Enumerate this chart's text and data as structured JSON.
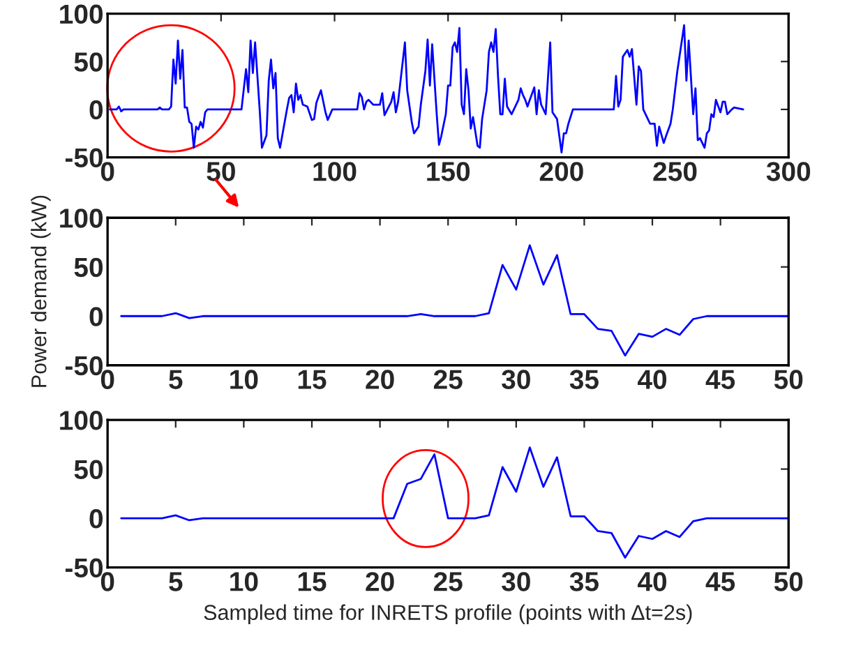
{
  "chart_data": [
    {
      "type": "line",
      "x": [
        1,
        4,
        5,
        6,
        7,
        22,
        23,
        24,
        27,
        28,
        29,
        30,
        31,
        32,
        33,
        34,
        35,
        36,
        37,
        38,
        39,
        40,
        41,
        42,
        43,
        44,
        59,
        61,
        62,
        63,
        64,
        65,
        67,
        68,
        70,
        71,
        72,
        73,
        74,
        75,
        76,
        79,
        80,
        81,
        82,
        83,
        84,
        85,
        86,
        88,
        90,
        91,
        92,
        94,
        96,
        97,
        99,
        110,
        111,
        112,
        113,
        114,
        115,
        117,
        120,
        121,
        122,
        125,
        126,
        127,
        128,
        131,
        132,
        134,
        135,
        137,
        138,
        140,
        141,
        142,
        143,
        145,
        146,
        147,
        149,
        150,
        151,
        152,
        153,
        154,
        155,
        156,
        157,
        158,
        159,
        160,
        161,
        163,
        164,
        165,
        167,
        168,
        169,
        170,
        171,
        172,
        173,
        174,
        175,
        176,
        178,
        179,
        181,
        182,
        183,
        184,
        185,
        186,
        188,
        189,
        190,
        191,
        193,
        195,
        196,
        198,
        200,
        201,
        202,
        203,
        205,
        223,
        224,
        225,
        226,
        227,
        229,
        230,
        231,
        233,
        234,
        235,
        236,
        238,
        239,
        241,
        242,
        243,
        245,
        246,
        248,
        249,
        251,
        254,
        255,
        256,
        258,
        259,
        260,
        261,
        263,
        264,
        265,
        266,
        267,
        268,
        270,
        271,
        272,
        273,
        275,
        276,
        280
      ],
      "values": [
        0,
        0,
        3,
        -2,
        0,
        0,
        2,
        0,
        0,
        3,
        52,
        27,
        72,
        32,
        62,
        2,
        2,
        -13,
        -15,
        -40,
        -18,
        -21,
        -13,
        -19,
        -3,
        0,
        0,
        42,
        18,
        72,
        38,
        70,
        0,
        -40,
        -27,
        30,
        52,
        22,
        38,
        -30,
        -40,
        0,
        12,
        15,
        -3,
        27,
        10,
        15,
        5,
        3,
        -11,
        -10,
        7,
        20,
        -3,
        -11,
        0,
        0,
        17,
        13,
        0,
        8,
        10,
        5,
        5,
        17,
        -6,
        8,
        18,
        -3,
        8,
        70,
        20,
        -13,
        -25,
        -18,
        5,
        40,
        73,
        25,
        68,
        -5,
        -37,
        -28,
        -5,
        25,
        25,
        65,
        70,
        60,
        85,
        5,
        -5,
        42,
        20,
        -20,
        -8,
        -38,
        -40,
        -10,
        20,
        60,
        70,
        60,
        84,
        35,
        -5,
        -5,
        32,
        3,
        -5,
        0,
        10,
        22,
        15,
        10,
        3,
        10,
        23,
        -5,
        20,
        5,
        -5,
        70,
        -3,
        -10,
        -45,
        -25,
        -25,
        -15,
        0,
        0,
        35,
        3,
        10,
        55,
        62,
        55,
        63,
        5,
        45,
        40,
        0,
        -10,
        -15,
        -15,
        -38,
        -18,
        -35,
        -28,
        -15,
        0,
        40,
        88,
        30,
        72,
        -5,
        22,
        -32,
        -30,
        -40,
        -25,
        -22,
        -5,
        -8,
        10,
        -3,
        8,
        8,
        -5,
        0,
        2,
        0
      ],
      "color": "#0000ff",
      "xlim": [
        0,
        300
      ],
      "xticks": [
        0,
        50,
        100,
        150,
        200,
        250,
        300
      ],
      "ylim": [
        -50,
        100
      ],
      "yticks": [
        -50,
        0,
        50,
        100
      ],
      "grid": false
    },
    {
      "type": "line",
      "x": [
        1,
        2,
        3,
        4,
        5,
        6,
        7,
        8,
        9,
        10,
        11,
        12,
        13,
        14,
        15,
        16,
        17,
        18,
        19,
        20,
        21,
        22,
        23,
        24,
        25,
        26,
        27,
        28,
        29,
        30,
        31,
        32,
        33,
        34,
        35,
        36,
        37,
        38,
        39,
        40,
        41,
        42,
        43,
        44,
        45,
        46,
        47,
        48,
        49,
        50
      ],
      "values": [
        0,
        0,
        0,
        0,
        3,
        -2,
        0,
        0,
        0,
        0,
        0,
        0,
        0,
        0,
        0,
        0,
        0,
        0,
        0,
        0,
        0,
        0,
        2,
        0,
        0,
        0,
        0,
        3,
        52,
        27,
        72,
        32,
        62,
        2,
        2,
        -13,
        -15,
        -40,
        -18,
        -21,
        -13,
        -19,
        -3,
        0,
        0,
        0,
        0,
        0,
        0,
        0
      ],
      "color": "#0000ff",
      "ylabel": "Power demand (kW)",
      "xlim": [
        0,
        50
      ],
      "xticks": [
        0,
        5,
        10,
        15,
        20,
        25,
        30,
        35,
        40,
        45,
        50
      ],
      "ylim": [
        -50,
        100
      ],
      "yticks": [
        -50,
        0,
        50,
        100
      ],
      "grid": false
    },
    {
      "type": "line",
      "x": [
        1,
        2,
        3,
        4,
        5,
        6,
        7,
        8,
        9,
        10,
        11,
        12,
        13,
        14,
        15,
        16,
        17,
        18,
        19,
        20,
        21,
        22,
        23,
        24,
        25,
        26,
        27,
        28,
        29,
        30,
        31,
        32,
        33,
        34,
        35,
        36,
        37,
        38,
        39,
        40,
        41,
        42,
        43,
        44,
        45,
        46,
        47,
        48,
        49,
        50
      ],
      "values": [
        0,
        0,
        0,
        0,
        3,
        -2,
        0,
        0,
        0,
        0,
        0,
        0,
        0,
        0,
        0,
        0,
        0,
        0,
        0,
        0,
        0,
        35,
        40,
        65,
        0,
        0,
        0,
        3,
        52,
        27,
        72,
        32,
        62,
        2,
        2,
        -13,
        -15,
        -40,
        -18,
        -21,
        -13,
        -19,
        -3,
        0,
        0,
        0,
        0,
        0,
        0,
        0
      ],
      "color": "#0000ff",
      "xlabel": "Sampled time for INRETS profile (points with Δt=2s)",
      "xlim": [
        0,
        50
      ],
      "xticks": [
        0,
        5,
        10,
        15,
        20,
        25,
        30,
        35,
        40,
        45,
        50
      ],
      "ylim": [
        -50,
        100
      ],
      "yticks": [
        -50,
        0,
        50,
        100
      ],
      "grid": false
    }
  ]
}
